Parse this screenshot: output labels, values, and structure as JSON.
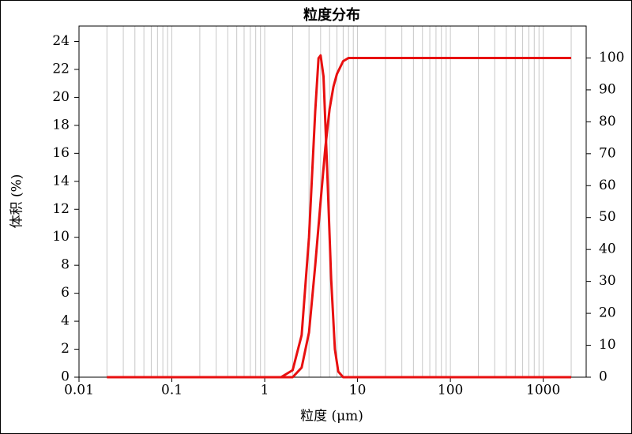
{
  "chart_data": {
    "type": "line",
    "title": "粒度分布",
    "xlabel": "粒度 (μm)",
    "ylabel": "体积 (%)",
    "xscale": "log",
    "xlim": [
      0.01,
      2900
    ],
    "xticks": [
      0.01,
      0.1,
      1,
      10,
      100,
      1000
    ],
    "ylim": [
      0,
      25.1
    ],
    "yticks": [
      0,
      2,
      4,
      6,
      8,
      10,
      12,
      14,
      16,
      18,
      20,
      22,
      24
    ],
    "y2lim": [
      0,
      110
    ],
    "y2ticks": [
      0,
      10,
      20,
      30,
      40,
      50,
      60,
      70,
      80,
      90,
      100
    ],
    "grid": true,
    "minor_grid": true,
    "series": [
      {
        "color": "#e81010",
        "x": [
          0.02,
          1.5,
          2,
          2.5,
          3,
          3.5,
          3.8,
          4,
          4.3,
          4.7,
          5.2,
          5.7,
          6.2,
          7,
          2000
        ],
        "values": [
          0,
          0,
          0.5,
          3,
          10,
          19,
          22.8,
          23,
          21.5,
          15,
          7,
          2,
          0.4,
          0,
          0
        ]
      },
      {
        "color": "#e81010",
        "axis": "y2",
        "x": [
          0.02,
          2,
          2.5,
          3,
          3.5,
          4,
          4.5,
          5,
          5.5,
          6,
          7,
          8,
          2000
        ],
        "values": [
          0,
          0,
          3,
          14,
          35,
          55,
          72,
          84,
          91,
          95,
          99,
          100,
          100
        ]
      }
    ]
  }
}
